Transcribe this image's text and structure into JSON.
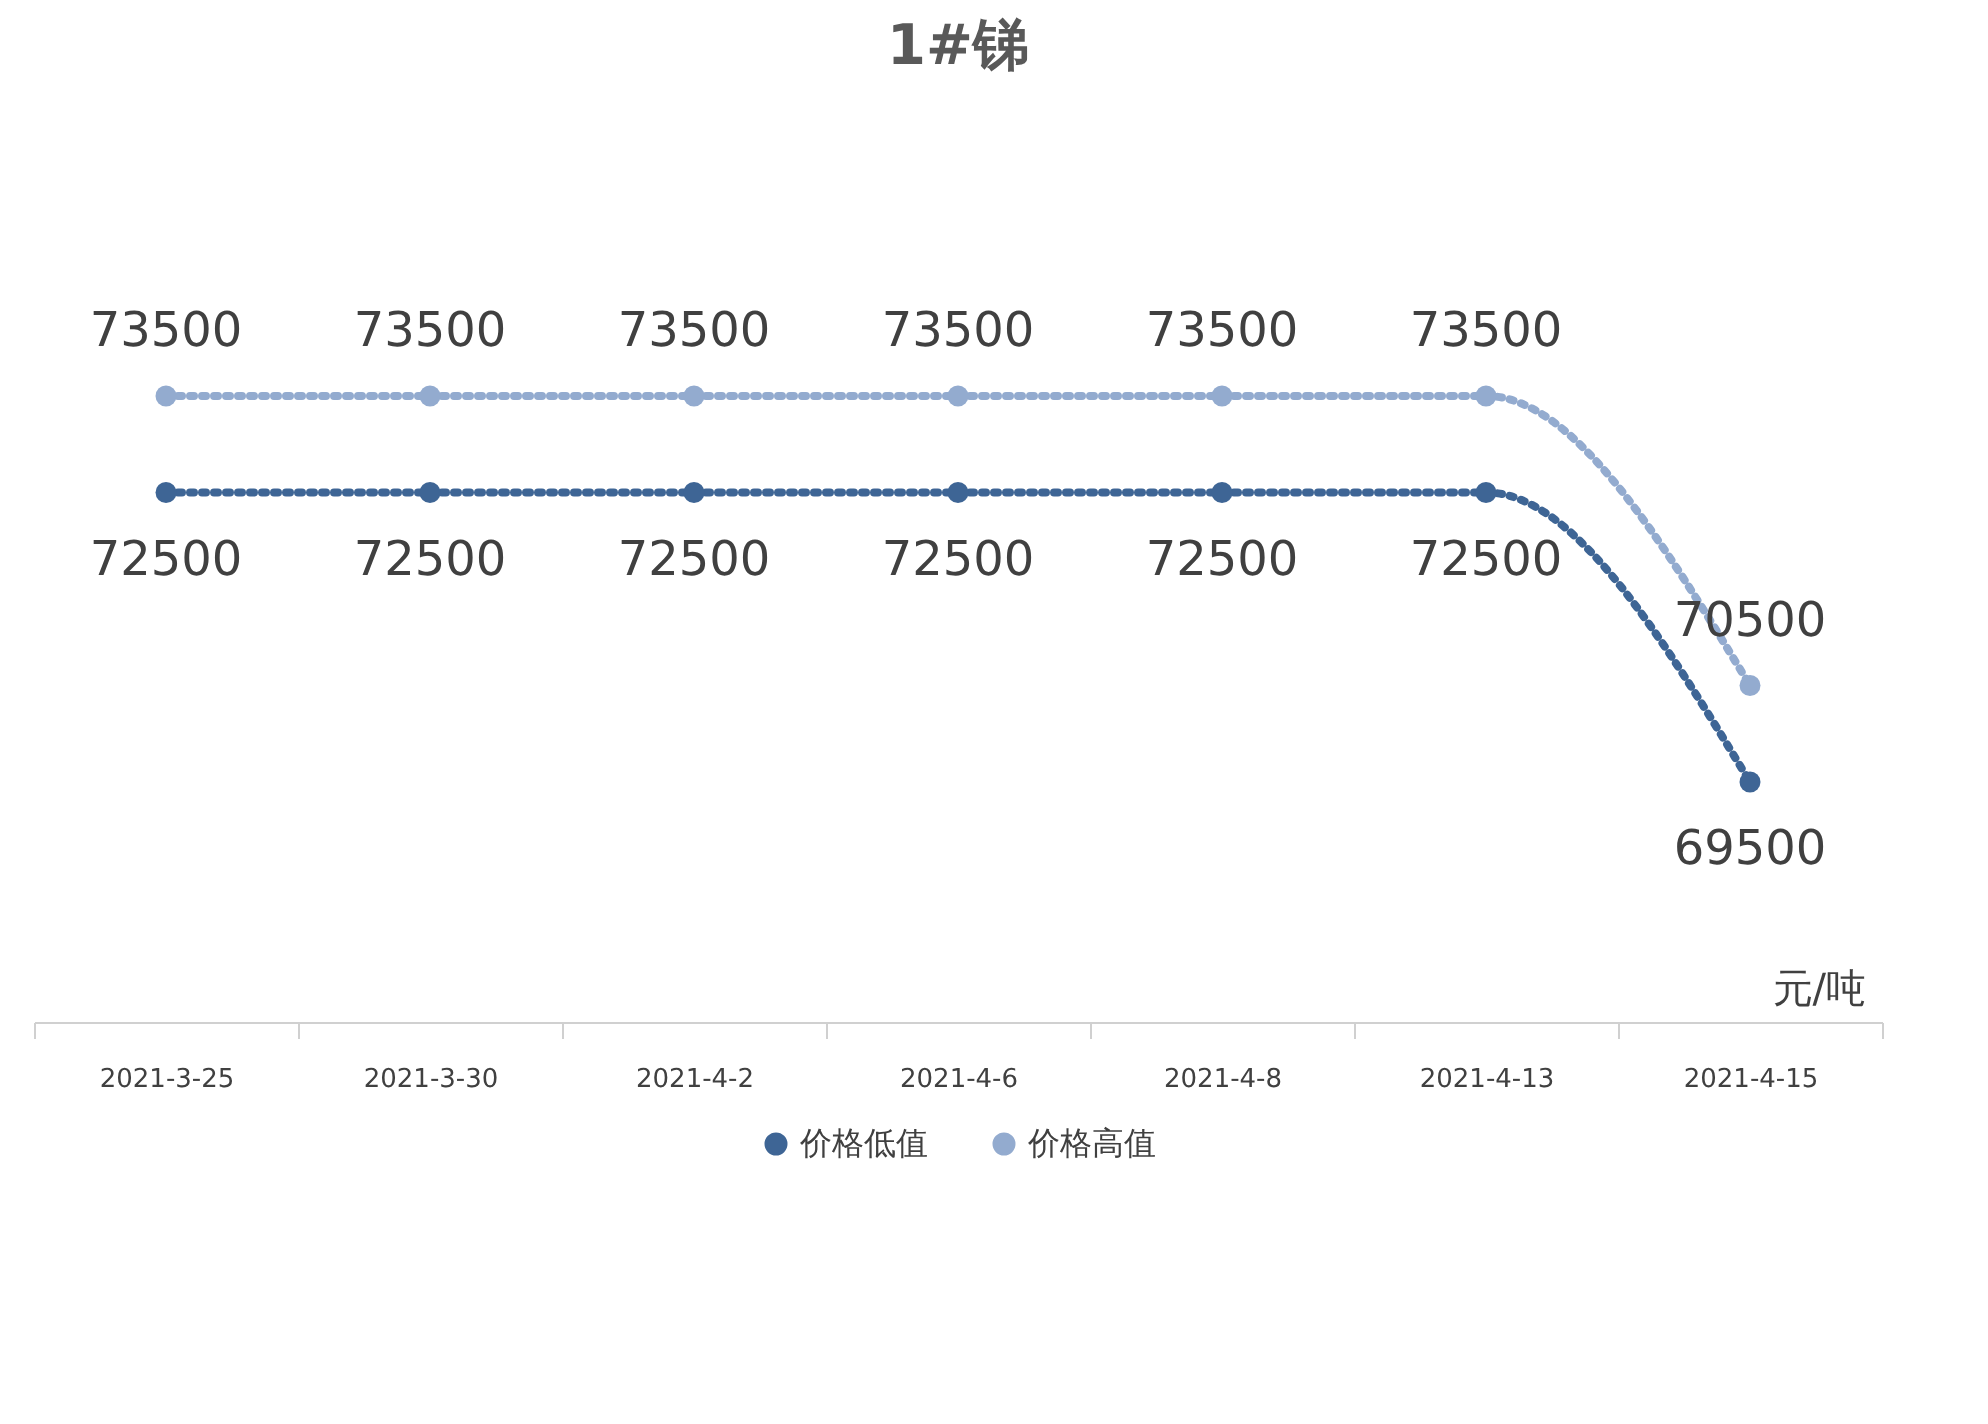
{
  "chart_data": {
    "type": "line",
    "title": "1#锑",
    "categories": [
      "2021-3-25",
      "2021-3-30",
      "2021-4-2",
      "2021-4-6",
      "2021-4-8",
      "2021-4-13",
      "2021-4-15"
    ],
    "series": [
      {
        "name": "价格低值",
        "color": "#3e6595",
        "values": [
          72500,
          72500,
          72500,
          72500,
          72500,
          72500,
          69500
        ]
      },
      {
        "name": "价格高值",
        "color": "#93abcf",
        "values": [
          73500,
          73500,
          73500,
          73500,
          73500,
          73500,
          70500
        ]
      }
    ],
    "tick_labels": "x",
    "data_labels": true,
    "legend": "bottom",
    "marker": "circle",
    "line_style": "dotted",
    "grid": false,
    "annotations": [
      "元/吨"
    ]
  }
}
